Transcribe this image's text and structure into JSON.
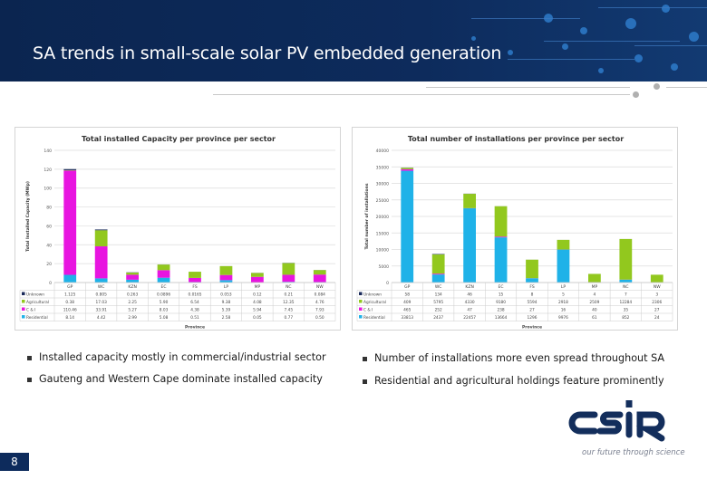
{
  "header": {
    "title": "SA trends in small-scale solar PV embedded generation"
  },
  "colors": {
    "header": "#0d2b5c",
    "residential": "#1fb2e8",
    "ci": "#e815e0",
    "agricultural": "#92c81e",
    "unknown": "#1a2a5a"
  },
  "chart_data": [
    {
      "type": "bar",
      "stacked": true,
      "title": "Total installed Capacity per province per sector",
      "xlabel": "Province",
      "ylabel": "Total Installed Capacity (MWp)",
      "ylim": [
        0,
        140
      ],
      "yticks": [
        0,
        20,
        40,
        60,
        80,
        100,
        120,
        140
      ],
      "grid": true,
      "legend": "table-below",
      "categories": [
        "GP",
        "WC",
        "KZN",
        "EC",
        "FS",
        "LP",
        "MP",
        "NC",
        "NW"
      ],
      "series": [
        {
          "name": "Unknown",
          "color": "#1a2a5a",
          "values": [
            1.125,
            0.805,
            0.263,
            0.0896,
            0.0165,
            0.053,
            0.12,
            0.21,
            0.084
          ],
          "labels": [
            "1.125",
            "0.805",
            "0.263",
            "0.0896",
            "0.0165",
            "0.053",
            "0.12",
            "0.21",
            "0.084"
          ]
        },
        {
          "name": "Agricultural",
          "color": "#92c81e",
          "values": [
            0.38,
            17.03,
            2.25,
            5.9,
            6.54,
            9.38,
            4.08,
            12.35,
            4.76
          ],
          "labels": [
            "0.38",
            "17.03",
            "2.25",
            "5.90",
            "6.54",
            "9.38",
            "4.08",
            "12.35",
            "4.76"
          ]
        },
        {
          "name": "C & I",
          "color": "#e815e0",
          "values": [
            110.46,
            33.91,
            5.27,
            8.03,
            4.38,
            5.39,
            5.94,
            7.45,
            7.93
          ],
          "labels": [
            "110.46",
            "33.91",
            "5.27",
            "8.03",
            "4.38",
            "5.39",
            "5.94",
            "7.45",
            "7.93"
          ]
        },
        {
          "name": "Residential",
          "color": "#1fb2e8",
          "values": [
            8.14,
            4.42,
            2.99,
            5.08,
            0.51,
            2.58,
            0.05,
            0.77,
            0.5
          ],
          "labels": [
            "8.14",
            "4.42",
            "2.99",
            "5.08",
            "0.51",
            "2.58",
            "0.05",
            "0.77",
            "0.50"
          ]
        }
      ]
    },
    {
      "type": "bar",
      "stacked": true,
      "title": "Total number of installations per province per sector",
      "xlabel": "Province",
      "ylabel": "Total number of installations",
      "ylim": [
        0,
        40000
      ],
      "yticks": [
        0,
        5000,
        10000,
        15000,
        20000,
        25000,
        30000,
        35000,
        40000
      ],
      "grid": true,
      "legend": "table-below",
      "categories": [
        "GP",
        "WC",
        "KZN",
        "EC",
        "FS",
        "LP",
        "MP",
        "NC",
        "NW"
      ],
      "series": [
        {
          "name": "Unknown",
          "color": "#1a2a5a",
          "values": [
            58,
            134,
            46,
            15,
            8,
            5,
            4,
            7,
            3
          ],
          "labels": [
            "58",
            "134",
            "46",
            "15",
            "8",
            "5",
            "4",
            "7",
            "3"
          ]
        },
        {
          "name": "Agricultural",
          "color": "#92c81e",
          "values": [
            409,
            5795,
            4330,
            9180,
            5594,
            2918,
            2509,
            12284,
            2306
          ],
          "labels": [
            "409",
            "5795",
            "4330",
            "9180",
            "5594",
            "2918",
            "2509",
            "12284",
            "2306"
          ]
        },
        {
          "name": "C & I",
          "color": "#e815e0",
          "values": [
            465,
            252,
            47,
            238,
            27,
            16,
            40,
            35,
            27
          ],
          "labels": [
            "465",
            "252",
            "47",
            "238",
            "27",
            "16",
            "40",
            "35",
            "27"
          ]
        },
        {
          "name": "Residential",
          "color": "#1fb2e8",
          "values": [
            33813,
            2437,
            22457,
            13664,
            1296,
            9976,
            61,
            852,
            24
          ],
          "labels": [
            "33813",
            "2437",
            "22457",
            "13664",
            "1296",
            "9976",
            "61",
            "852",
            "24"
          ]
        }
      ]
    }
  ],
  "bullets": {
    "left": [
      "Installed capacity mostly in commercial/industrial sector",
      "Gauteng and Western Cape dominate installed capacity"
    ],
    "right": [
      "Number of installations more even spread throughout SA",
      "Residential and agricultural holdings feature prominently"
    ]
  },
  "footer": {
    "page_number": "8",
    "logo_text": "CSIR",
    "logo_tagline": "our future through science"
  }
}
